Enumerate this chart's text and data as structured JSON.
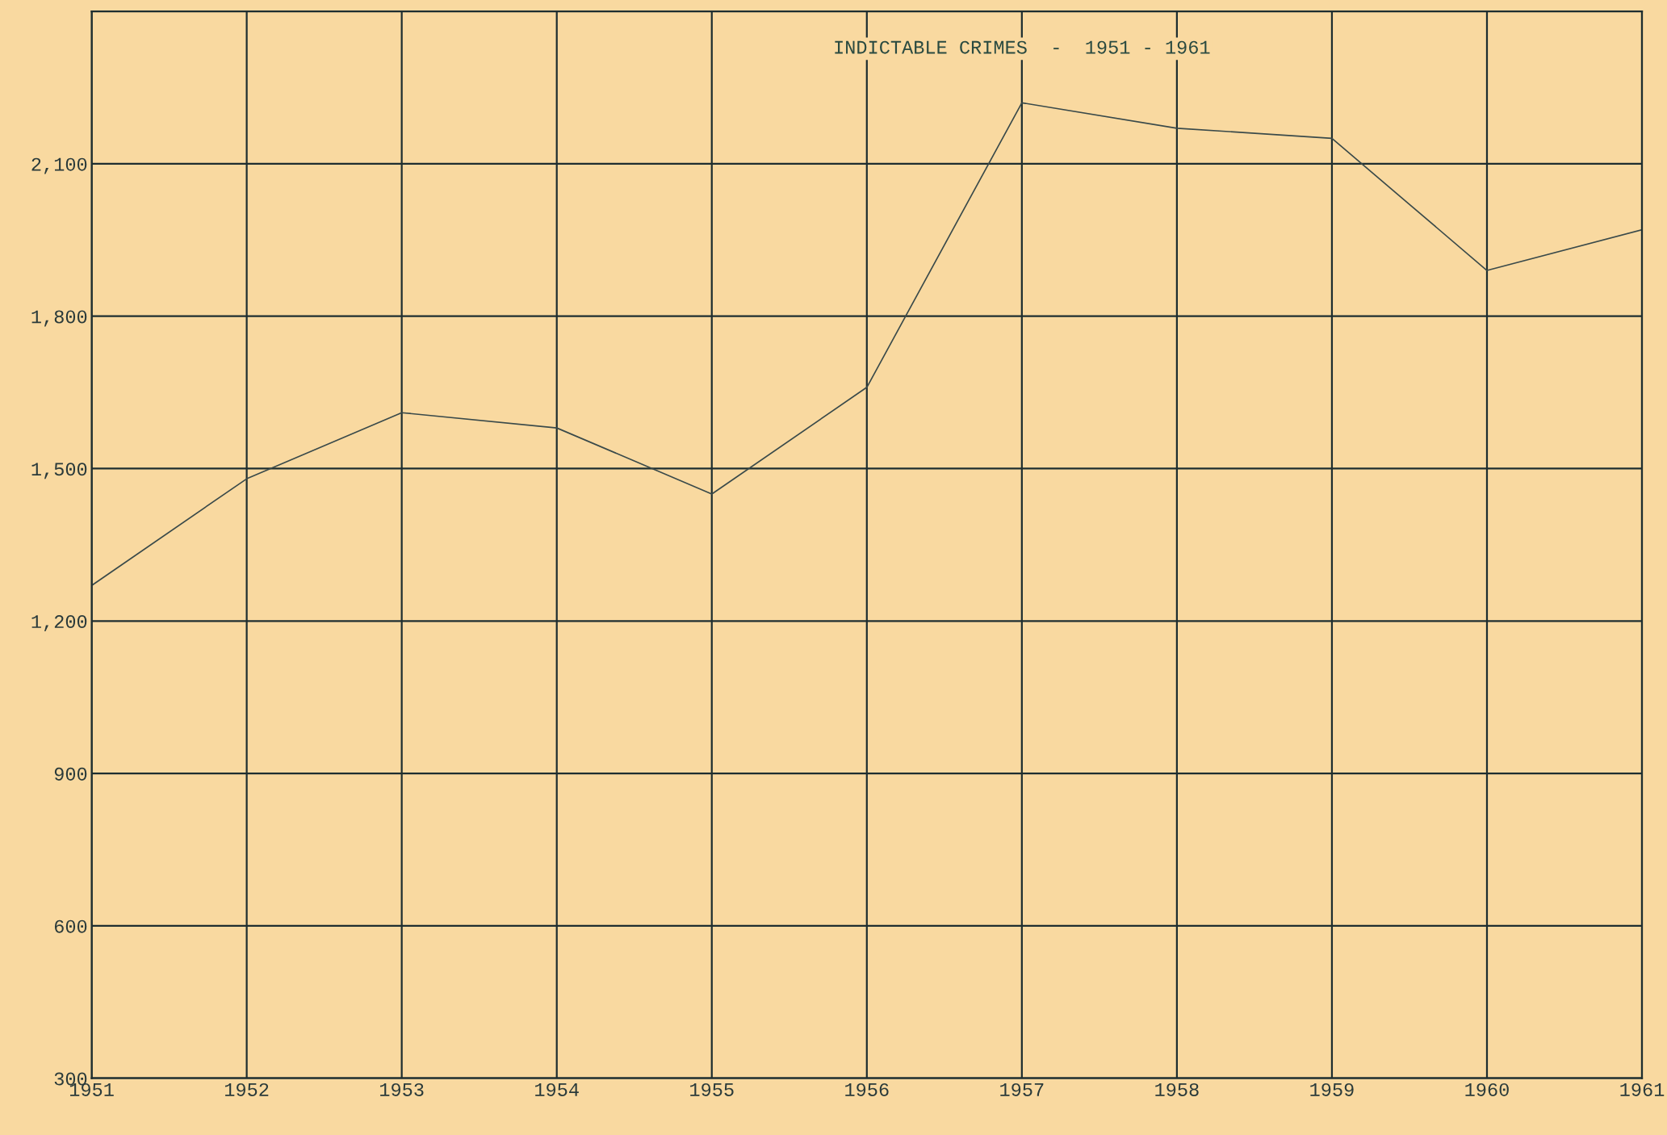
{
  "chart_data": {
    "type": "line",
    "title": "INDICTABLE CRIMES  -  1951 - 1961",
    "x": [
      1951,
      1952,
      1953,
      1954,
      1955,
      1956,
      1957,
      1958,
      1959,
      1960,
      1961
    ],
    "series": [
      {
        "color": "#3a4a4a",
        "values": [
          1270,
          1480,
          1610,
          1580,
          1450,
          1660,
          2220,
          2170,
          2150,
          1890,
          1970
        ]
      }
    ],
    "xlim": [
      1951,
      1961
    ],
    "xticks": [
      1951,
      1952,
      1953,
      1954,
      1955,
      1956,
      1957,
      1958,
      1959,
      1960,
      1961
    ],
    "ylim": [
      300,
      2400
    ],
    "yticks": [
      {
        "value": 300,
        "label": "300"
      },
      {
        "value": 600,
        "label": "600"
      },
      {
        "value": 900,
        "label": "900"
      },
      {
        "value": 1200,
        "label": "1,200"
      },
      {
        "value": 1500,
        "label": "1,500"
      },
      {
        "value": 1800,
        "label": "1,800"
      },
      {
        "value": 2100,
        "label": "2,100"
      }
    ],
    "grid": true,
    "legend": false,
    "marker": "none",
    "line_style": "solid"
  }
}
